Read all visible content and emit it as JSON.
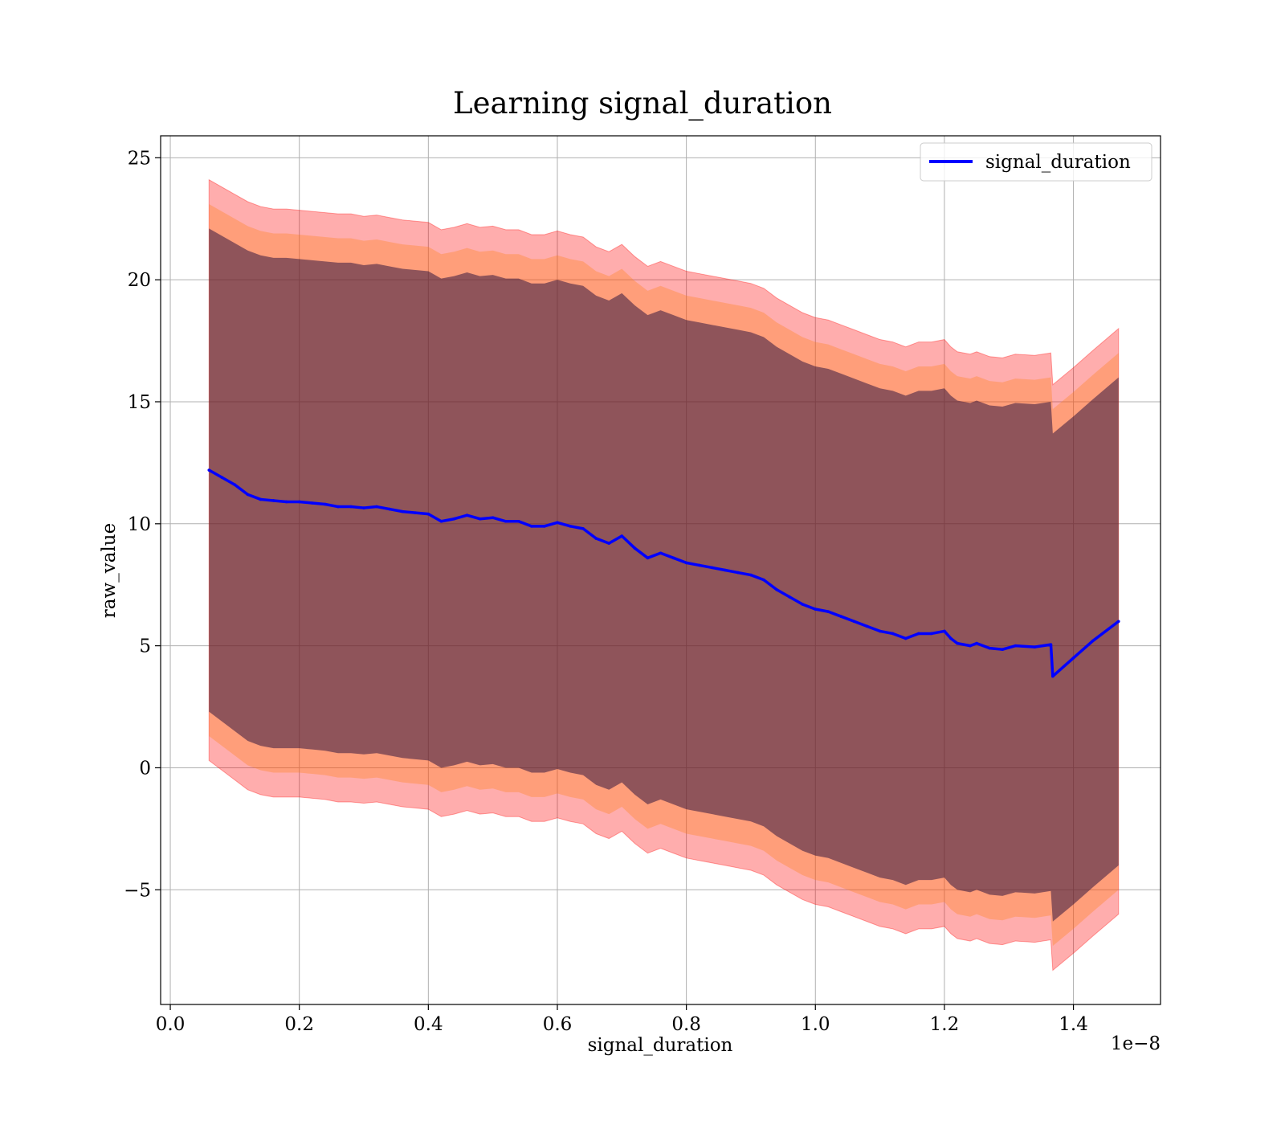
{
  "chart_data": {
    "type": "line",
    "title": "Learning signal_duration",
    "xlabel": "signal_duration",
    "ylabel": "raw_value",
    "x_offset_label": "1e−8",
    "xlim": [
      -0.015,
      1.535
    ],
    "ylim": [
      -9.7,
      25.9
    ],
    "x_ticks": [
      0.0,
      0.2,
      0.4,
      0.6,
      0.8,
      1.0,
      1.2,
      1.4
    ],
    "x_tick_labels": [
      "0.0",
      "0.2",
      "0.4",
      "0.6",
      "0.8",
      "1.0",
      "1.2",
      "1.4"
    ],
    "y_ticks": [
      -5,
      0,
      5,
      10,
      15,
      20,
      25
    ],
    "y_tick_labels": [
      "−5",
      "0",
      "5",
      "10",
      "15",
      "20",
      "25"
    ],
    "grid": true,
    "legend_position": "top-right",
    "colors": {
      "line": "#0000ff",
      "band_outer": "#ff0000",
      "band_middle": "#ff7f0e",
      "band_inner": "#1f0a3a",
      "grid": "#b0b0b0"
    },
    "series": [
      {
        "name": "signal_duration",
        "x": [
          0.06,
          0.08,
          0.1,
          0.12,
          0.14,
          0.16,
          0.18,
          0.2,
          0.22,
          0.24,
          0.26,
          0.28,
          0.3,
          0.32,
          0.34,
          0.36,
          0.38,
          0.4,
          0.42,
          0.44,
          0.46,
          0.48,
          0.5,
          0.52,
          0.54,
          0.56,
          0.58,
          0.6,
          0.62,
          0.64,
          0.66,
          0.68,
          0.7,
          0.72,
          0.74,
          0.76,
          0.78,
          0.8,
          0.82,
          0.84,
          0.86,
          0.88,
          0.9,
          0.92,
          0.94,
          0.96,
          0.98,
          1.0,
          1.02,
          1.04,
          1.06,
          1.08,
          1.1,
          1.12,
          1.14,
          1.16,
          1.18,
          1.2,
          1.21,
          1.22,
          1.24,
          1.25,
          1.27,
          1.29,
          1.31,
          1.34,
          1.365,
          1.368,
          1.4,
          1.43,
          1.47
        ],
        "values": [
          12.2,
          11.9,
          11.6,
          11.2,
          11.0,
          10.95,
          10.9,
          10.9,
          10.85,
          10.8,
          10.7,
          10.7,
          10.65,
          10.7,
          10.6,
          10.5,
          10.45,
          10.4,
          10.1,
          10.2,
          10.35,
          10.2,
          10.25,
          10.1,
          10.1,
          9.9,
          9.9,
          10.05,
          9.9,
          9.8,
          9.4,
          9.2,
          9.5,
          9.0,
          8.6,
          8.8,
          8.6,
          8.4,
          8.3,
          8.2,
          8.1,
          8.0,
          7.9,
          7.7,
          7.3,
          7.0,
          6.7,
          6.5,
          6.4,
          6.2,
          6.0,
          5.8,
          5.6,
          5.5,
          5.3,
          5.5,
          5.5,
          5.6,
          5.3,
          5.1,
          5.0,
          5.1,
          4.9,
          4.85,
          5.0,
          4.95,
          5.05,
          3.75,
          4.5,
          5.2,
          6.0
        ],
        "band_inner_low": [
          2.3,
          1.9,
          1.5,
          1.1,
          0.9,
          0.8,
          0.8,
          0.8,
          0.75,
          0.7,
          0.6,
          0.6,
          0.55,
          0.6,
          0.5,
          0.4,
          0.35,
          0.3,
          0.0,
          0.1,
          0.25,
          0.1,
          0.15,
          0.0,
          0.0,
          -0.2,
          -0.2,
          -0.05,
          -0.2,
          -0.3,
          -0.7,
          -0.9,
          -0.6,
          -1.1,
          -1.5,
          -1.3,
          -1.5,
          -1.7,
          -1.8,
          -1.9,
          -2.0,
          -2.1,
          -2.2,
          -2.4,
          -2.8,
          -3.1,
          -3.4,
          -3.6,
          -3.7,
          -3.9,
          -4.1,
          -4.3,
          -4.5,
          -4.6,
          -4.8,
          -4.6,
          -4.6,
          -4.5,
          -4.8,
          -5.0,
          -5.1,
          -5.0,
          -5.2,
          -5.25,
          -5.1,
          -5.15,
          -5.05,
          -6.3,
          -5.6,
          -4.9,
          -4.0
        ],
        "band_inner_high": [
          22.1,
          21.8,
          21.5,
          21.2,
          21.0,
          20.9,
          20.9,
          20.85,
          20.8,
          20.75,
          20.7,
          20.7,
          20.6,
          20.65,
          20.55,
          20.45,
          20.4,
          20.35,
          20.05,
          20.15,
          20.3,
          20.15,
          20.2,
          20.05,
          20.05,
          19.85,
          19.85,
          20.0,
          19.85,
          19.75,
          19.35,
          19.15,
          19.45,
          18.95,
          18.55,
          18.75,
          18.55,
          18.35,
          18.25,
          18.15,
          18.05,
          17.95,
          17.85,
          17.65,
          17.25,
          16.95,
          16.65,
          16.45,
          16.35,
          16.15,
          15.95,
          15.75,
          15.55,
          15.45,
          15.25,
          15.45,
          15.45,
          15.55,
          15.25,
          15.05,
          14.95,
          15.05,
          14.85,
          14.8,
          14.95,
          14.9,
          15.0,
          13.7,
          14.4,
          15.1,
          16.0
        ],
        "band_middle_low": [
          1.3,
          0.9,
          0.5,
          0.1,
          -0.1,
          -0.2,
          -0.2,
          -0.2,
          -0.25,
          -0.3,
          -0.4,
          -0.4,
          -0.45,
          -0.4,
          -0.5,
          -0.6,
          -0.65,
          -0.7,
          -1.0,
          -0.9,
          -0.75,
          -0.9,
          -0.85,
          -1.0,
          -1.0,
          -1.2,
          -1.2,
          -1.05,
          -1.2,
          -1.3,
          -1.7,
          -1.9,
          -1.6,
          -2.1,
          -2.5,
          -2.3,
          -2.5,
          -2.7,
          -2.8,
          -2.9,
          -3.0,
          -3.1,
          -3.2,
          -3.4,
          -3.8,
          -4.1,
          -4.4,
          -4.6,
          -4.7,
          -4.9,
          -5.1,
          -5.3,
          -5.5,
          -5.6,
          -5.8,
          -5.6,
          -5.6,
          -5.5,
          -5.8,
          -6.0,
          -6.1,
          -6.0,
          -6.2,
          -6.25,
          -6.1,
          -6.15,
          -6.05,
          -7.3,
          -6.6,
          -5.9,
          -5.0
        ],
        "band_middle_high": [
          23.1,
          22.8,
          22.5,
          22.2,
          22.0,
          21.9,
          21.9,
          21.85,
          21.8,
          21.75,
          21.7,
          21.7,
          21.6,
          21.65,
          21.55,
          21.45,
          21.4,
          21.35,
          21.05,
          21.15,
          21.3,
          21.15,
          21.2,
          21.05,
          21.05,
          20.85,
          20.85,
          21.0,
          20.85,
          20.75,
          20.35,
          20.15,
          20.45,
          19.95,
          19.55,
          19.75,
          19.55,
          19.35,
          19.25,
          19.15,
          19.05,
          18.95,
          18.85,
          18.65,
          18.25,
          17.95,
          17.65,
          17.45,
          17.35,
          17.15,
          16.95,
          16.75,
          16.55,
          16.45,
          16.25,
          16.45,
          16.45,
          16.55,
          16.25,
          16.05,
          15.95,
          16.05,
          15.85,
          15.8,
          15.95,
          15.9,
          16.0,
          14.7,
          15.4,
          16.1,
          17.0
        ],
        "band_outer_low": [
          0.3,
          -0.1,
          -0.5,
          -0.9,
          -1.1,
          -1.2,
          -1.2,
          -1.2,
          -1.25,
          -1.3,
          -1.4,
          -1.4,
          -1.45,
          -1.4,
          -1.5,
          -1.6,
          -1.65,
          -1.7,
          -2.0,
          -1.9,
          -1.75,
          -1.9,
          -1.85,
          -2.0,
          -2.0,
          -2.2,
          -2.2,
          -2.05,
          -2.2,
          -2.3,
          -2.7,
          -2.9,
          -2.6,
          -3.1,
          -3.5,
          -3.3,
          -3.5,
          -3.7,
          -3.8,
          -3.9,
          -4.0,
          -4.1,
          -4.2,
          -4.4,
          -4.8,
          -5.1,
          -5.4,
          -5.6,
          -5.7,
          -5.9,
          -6.1,
          -6.3,
          -6.5,
          -6.6,
          -6.8,
          -6.6,
          -6.6,
          -6.5,
          -6.8,
          -7.0,
          -7.1,
          -7.0,
          -7.2,
          -7.25,
          -7.1,
          -7.15,
          -7.05,
          -8.3,
          -7.6,
          -6.9,
          -6.0
        ],
        "band_outer_high": [
          24.1,
          23.8,
          23.5,
          23.2,
          23.0,
          22.9,
          22.9,
          22.85,
          22.8,
          22.75,
          22.7,
          22.7,
          22.6,
          22.65,
          22.55,
          22.45,
          22.4,
          22.35,
          22.05,
          22.15,
          22.3,
          22.15,
          22.2,
          22.05,
          22.05,
          21.85,
          21.85,
          22.0,
          21.85,
          21.75,
          21.35,
          21.15,
          21.45,
          20.95,
          20.55,
          20.75,
          20.55,
          20.35,
          20.25,
          20.15,
          20.05,
          19.95,
          19.85,
          19.65,
          19.25,
          18.95,
          18.65,
          18.45,
          18.35,
          18.15,
          17.95,
          17.75,
          17.55,
          17.45,
          17.25,
          17.45,
          17.45,
          17.55,
          17.25,
          17.05,
          16.95,
          17.05,
          16.85,
          16.8,
          16.95,
          16.9,
          17.0,
          15.7,
          16.4,
          17.1,
          18.0
        ]
      }
    ]
  }
}
